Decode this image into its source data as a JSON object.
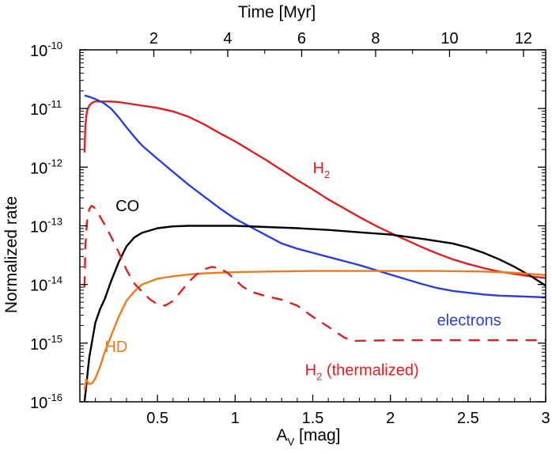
{
  "chart_data": {
    "type": "line",
    "xlabel_main": "A",
    "xlabel_sub": "V",
    "xlabel_unit": " [mag]",
    "ylabel": "Normalized rate",
    "top_xlabel": "Time [Myr]",
    "xlim": [
      0.0,
      3.0
    ],
    "ylim_log10": [
      -16,
      -10
    ],
    "top_xlim": [
      0.0,
      12.6
    ],
    "x_ticks": [
      {
        "value": 0.5,
        "label": "0.5"
      },
      {
        "value": 1,
        "label": "1"
      },
      {
        "value": 1.5,
        "label": "1.5"
      },
      {
        "value": 2,
        "label": "2"
      },
      {
        "value": 2.5,
        "label": "2.5"
      },
      {
        "value": 3,
        "label": "3"
      }
    ],
    "x_minor_ticks": [
      0.1,
      0.2,
      0.3,
      0.4,
      0.6,
      0.7,
      0.8,
      0.9,
      1.1,
      1.2,
      1.3,
      1.4,
      1.6,
      1.7,
      1.8,
      1.9,
      2.1,
      2.2,
      2.3,
      2.4,
      2.6,
      2.7,
      2.8,
      2.9
    ],
    "top_x_ticks": [
      {
        "value": 2,
        "label": "2"
      },
      {
        "value": 4,
        "label": "4"
      },
      {
        "value": 6,
        "label": "6"
      },
      {
        "value": 8,
        "label": "8"
      },
      {
        "value": 10,
        "label": "10"
      },
      {
        "value": 12,
        "label": "12"
      }
    ],
    "top_x_minor_ticks": [
      1,
      3,
      5,
      7,
      9,
      11
    ],
    "y_ticks": [
      {
        "exp": -16,
        "base": "10",
        "sup": "-16"
      },
      {
        "exp": -15,
        "base": "10",
        "sup": "-15"
      },
      {
        "exp": -14,
        "base": "10",
        "sup": "-14"
      },
      {
        "exp": -13,
        "base": "10",
        "sup": "-13"
      },
      {
        "exp": -12,
        "base": "10",
        "sup": "-12"
      },
      {
        "exp": -11,
        "base": "10",
        "sup": "-11"
      },
      {
        "exp": -10,
        "base": "10",
        "sup": "-10"
      }
    ],
    "series": [
      {
        "name": "H2",
        "label_main": "H",
        "label_sub": "2",
        "label_suffix": "",
        "color": "#e02020",
        "dash": "",
        "label_at": [
          1.5,
          -12.1
        ],
        "points": [
          [
            0.03,
            -11.75
          ],
          [
            0.035,
            -11.3
          ],
          [
            0.045,
            -11.05
          ],
          [
            0.06,
            -10.95
          ],
          [
            0.08,
            -10.9
          ],
          [
            0.1,
            -10.88
          ],
          [
            0.15,
            -10.88
          ],
          [
            0.2,
            -10.88
          ],
          [
            0.25,
            -10.89
          ],
          [
            0.3,
            -10.91
          ],
          [
            0.4,
            -10.95
          ],
          [
            0.5,
            -10.99
          ],
          [
            0.6,
            -11.05
          ],
          [
            0.7,
            -11.14
          ],
          [
            0.8,
            -11.27
          ],
          [
            0.9,
            -11.42
          ],
          [
            1.0,
            -11.56
          ],
          [
            1.1,
            -11.72
          ],
          [
            1.2,
            -11.88
          ],
          [
            1.3,
            -12.05
          ],
          [
            1.4,
            -12.22
          ],
          [
            1.5,
            -12.38
          ],
          [
            1.6,
            -12.55
          ],
          [
            1.7,
            -12.7
          ],
          [
            1.8,
            -12.85
          ],
          [
            1.9,
            -12.99
          ],
          [
            2.0,
            -13.12
          ],
          [
            2.1,
            -13.24
          ],
          [
            2.2,
            -13.36
          ],
          [
            2.3,
            -13.47
          ],
          [
            2.4,
            -13.57
          ],
          [
            2.5,
            -13.65
          ],
          [
            2.6,
            -13.72
          ],
          [
            2.7,
            -13.78
          ],
          [
            2.8,
            -13.82
          ],
          [
            2.9,
            -13.86
          ],
          [
            3.0,
            -13.89
          ]
        ]
      },
      {
        "name": "electrons",
        "label_main": "electrons",
        "label_sub": "",
        "label_suffix": "",
        "color": "#2a3ee0",
        "dash": "",
        "label_at": [
          2.3,
          -14.7
        ],
        "points": [
          [
            0.03,
            -10.78
          ],
          [
            0.06,
            -10.8
          ],
          [
            0.1,
            -10.84
          ],
          [
            0.15,
            -10.9
          ],
          [
            0.2,
            -11.0
          ],
          [
            0.25,
            -11.15
          ],
          [
            0.3,
            -11.32
          ],
          [
            0.35,
            -11.48
          ],
          [
            0.4,
            -11.63
          ],
          [
            0.5,
            -11.86
          ],
          [
            0.6,
            -12.08
          ],
          [
            0.7,
            -12.3
          ],
          [
            0.8,
            -12.5
          ],
          [
            0.9,
            -12.7
          ],
          [
            1.0,
            -12.88
          ],
          [
            1.1,
            -13.02
          ],
          [
            1.2,
            -13.16
          ],
          [
            1.3,
            -13.3
          ],
          [
            1.4,
            -13.39
          ],
          [
            1.5,
            -13.46
          ],
          [
            1.6,
            -13.53
          ],
          [
            1.7,
            -13.6
          ],
          [
            1.8,
            -13.67
          ],
          [
            1.9,
            -13.75
          ],
          [
            2.0,
            -13.83
          ],
          [
            2.1,
            -13.91
          ],
          [
            2.2,
            -13.99
          ],
          [
            2.3,
            -14.06
          ],
          [
            2.4,
            -14.11
          ],
          [
            2.5,
            -14.14
          ],
          [
            2.6,
            -14.17
          ],
          [
            2.7,
            -14.19
          ],
          [
            2.8,
            -14.2
          ],
          [
            2.9,
            -14.21
          ],
          [
            3.0,
            -14.22
          ]
        ]
      },
      {
        "name": "CO",
        "label_main": "CO",
        "label_sub": "",
        "label_suffix": "",
        "color": "#000000",
        "dash": "",
        "label_at": [
          0.23,
          -12.75
        ],
        "points": [
          [
            0.03,
            -16.0
          ],
          [
            0.04,
            -15.75
          ],
          [
            0.06,
            -15.25
          ],
          [
            0.08,
            -14.95
          ],
          [
            0.1,
            -14.65
          ],
          [
            0.13,
            -14.42
          ],
          [
            0.16,
            -14.25
          ],
          [
            0.2,
            -13.95
          ],
          [
            0.25,
            -13.62
          ],
          [
            0.3,
            -13.35
          ],
          [
            0.35,
            -13.2
          ],
          [
            0.4,
            -13.12
          ],
          [
            0.5,
            -13.04
          ],
          [
            0.6,
            -13.01
          ],
          [
            0.7,
            -13.0
          ],
          [
            0.8,
            -13.0
          ],
          [
            0.9,
            -13.0
          ],
          [
            1.0,
            -13.0
          ],
          [
            1.2,
            -13.02
          ],
          [
            1.4,
            -13.04
          ],
          [
            1.6,
            -13.07
          ],
          [
            1.8,
            -13.11
          ],
          [
            2.0,
            -13.15
          ],
          [
            2.2,
            -13.22
          ],
          [
            2.4,
            -13.3
          ],
          [
            2.5,
            -13.37
          ],
          [
            2.6,
            -13.46
          ],
          [
            2.7,
            -13.57
          ],
          [
            2.8,
            -13.7
          ],
          [
            2.9,
            -13.85
          ],
          [
            3.0,
            -14.02
          ]
        ]
      },
      {
        "name": "HD",
        "label_main": "HD",
        "label_sub": "",
        "label_suffix": "",
        "color": "#f07a20",
        "dash": "",
        "label_at": [
          0.16,
          -15.15
        ],
        "points": [
          [
            0.03,
            -15.8
          ],
          [
            0.04,
            -15.62
          ],
          [
            0.06,
            -15.7
          ],
          [
            0.08,
            -15.68
          ],
          [
            0.1,
            -15.6
          ],
          [
            0.13,
            -15.4
          ],
          [
            0.16,
            -15.15
          ],
          [
            0.2,
            -14.88
          ],
          [
            0.25,
            -14.55
          ],
          [
            0.3,
            -14.28
          ],
          [
            0.35,
            -14.12
          ],
          [
            0.4,
            -14.0
          ],
          [
            0.5,
            -13.9
          ],
          [
            0.6,
            -13.86
          ],
          [
            0.7,
            -13.83
          ],
          [
            0.8,
            -13.81
          ],
          [
            1.0,
            -13.79
          ],
          [
            1.2,
            -13.78
          ],
          [
            1.5,
            -13.77
          ],
          [
            1.8,
            -13.77
          ],
          [
            2.0,
            -13.77
          ],
          [
            2.3,
            -13.77
          ],
          [
            2.6,
            -13.78
          ],
          [
            2.8,
            -13.8
          ],
          [
            3.0,
            -13.84
          ]
        ]
      },
      {
        "name": "H2 (thermalized)",
        "label_main": "H",
        "label_sub": "2",
        "label_suffix": " (thermalized)",
        "color": "#e02020",
        "dash": "14,10",
        "label_at": [
          1.45,
          -15.55
        ],
        "points": [
          [
            0.03,
            -14.05
          ],
          [
            0.035,
            -13.35
          ],
          [
            0.045,
            -12.95
          ],
          [
            0.06,
            -12.72
          ],
          [
            0.075,
            -12.66
          ],
          [
            0.09,
            -12.68
          ],
          [
            0.12,
            -12.8
          ],
          [
            0.16,
            -12.98
          ],
          [
            0.2,
            -13.18
          ],
          [
            0.25,
            -13.45
          ],
          [
            0.3,
            -13.75
          ],
          [
            0.35,
            -13.98
          ],
          [
            0.4,
            -14.12
          ],
          [
            0.45,
            -14.25
          ],
          [
            0.5,
            -14.34
          ],
          [
            0.55,
            -14.36
          ],
          [
            0.6,
            -14.28
          ],
          [
            0.65,
            -14.12
          ],
          [
            0.7,
            -13.96
          ],
          [
            0.75,
            -13.83
          ],
          [
            0.8,
            -13.74
          ],
          [
            0.85,
            -13.7
          ],
          [
            0.9,
            -13.72
          ],
          [
            0.95,
            -13.8
          ],
          [
            1.0,
            -13.92
          ],
          [
            1.05,
            -14.04
          ],
          [
            1.1,
            -14.12
          ],
          [
            1.2,
            -14.2
          ],
          [
            1.3,
            -14.26
          ],
          [
            1.4,
            -14.36
          ],
          [
            1.5,
            -14.55
          ],
          [
            1.6,
            -14.72
          ],
          [
            1.7,
            -14.9
          ],
          [
            1.75,
            -14.96
          ],
          [
            1.8,
            -14.96
          ],
          [
            2.0,
            -14.95
          ],
          [
            2.5,
            -14.95
          ],
          [
            3.0,
            -14.95
          ]
        ]
      }
    ]
  }
}
